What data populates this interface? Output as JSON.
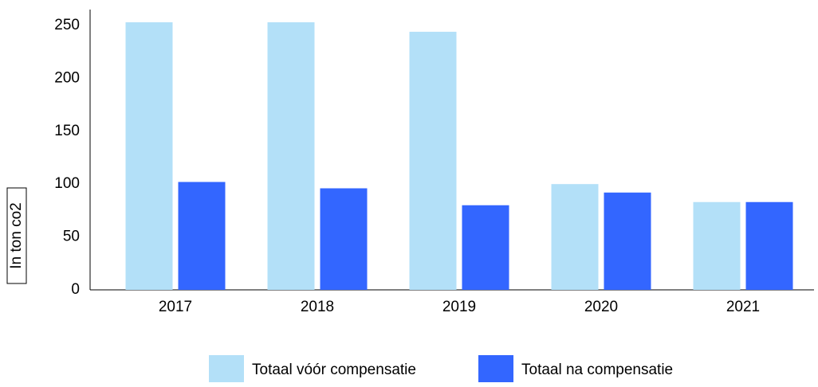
{
  "chart_data": {
    "type": "bar",
    "y_label": "In ton co2",
    "categories": [
      "2017",
      "2018",
      "2019",
      "2020",
      "2021"
    ],
    "series": [
      {
        "name": "Totaal vóór compensatie",
        "color": "#b3e0f8",
        "values": [
          253,
          253,
          244,
          100,
          83
        ]
      },
      {
        "name": "Totaal na compensatie",
        "color": "#3366ff",
        "values": [
          102,
          96,
          80,
          92,
          83
        ]
      }
    ],
    "ylim": [
      0,
      265
    ],
    "yticks": [
      0,
      50,
      100,
      150,
      200,
      250
    ],
    "grid": false,
    "legend": "bottom"
  }
}
